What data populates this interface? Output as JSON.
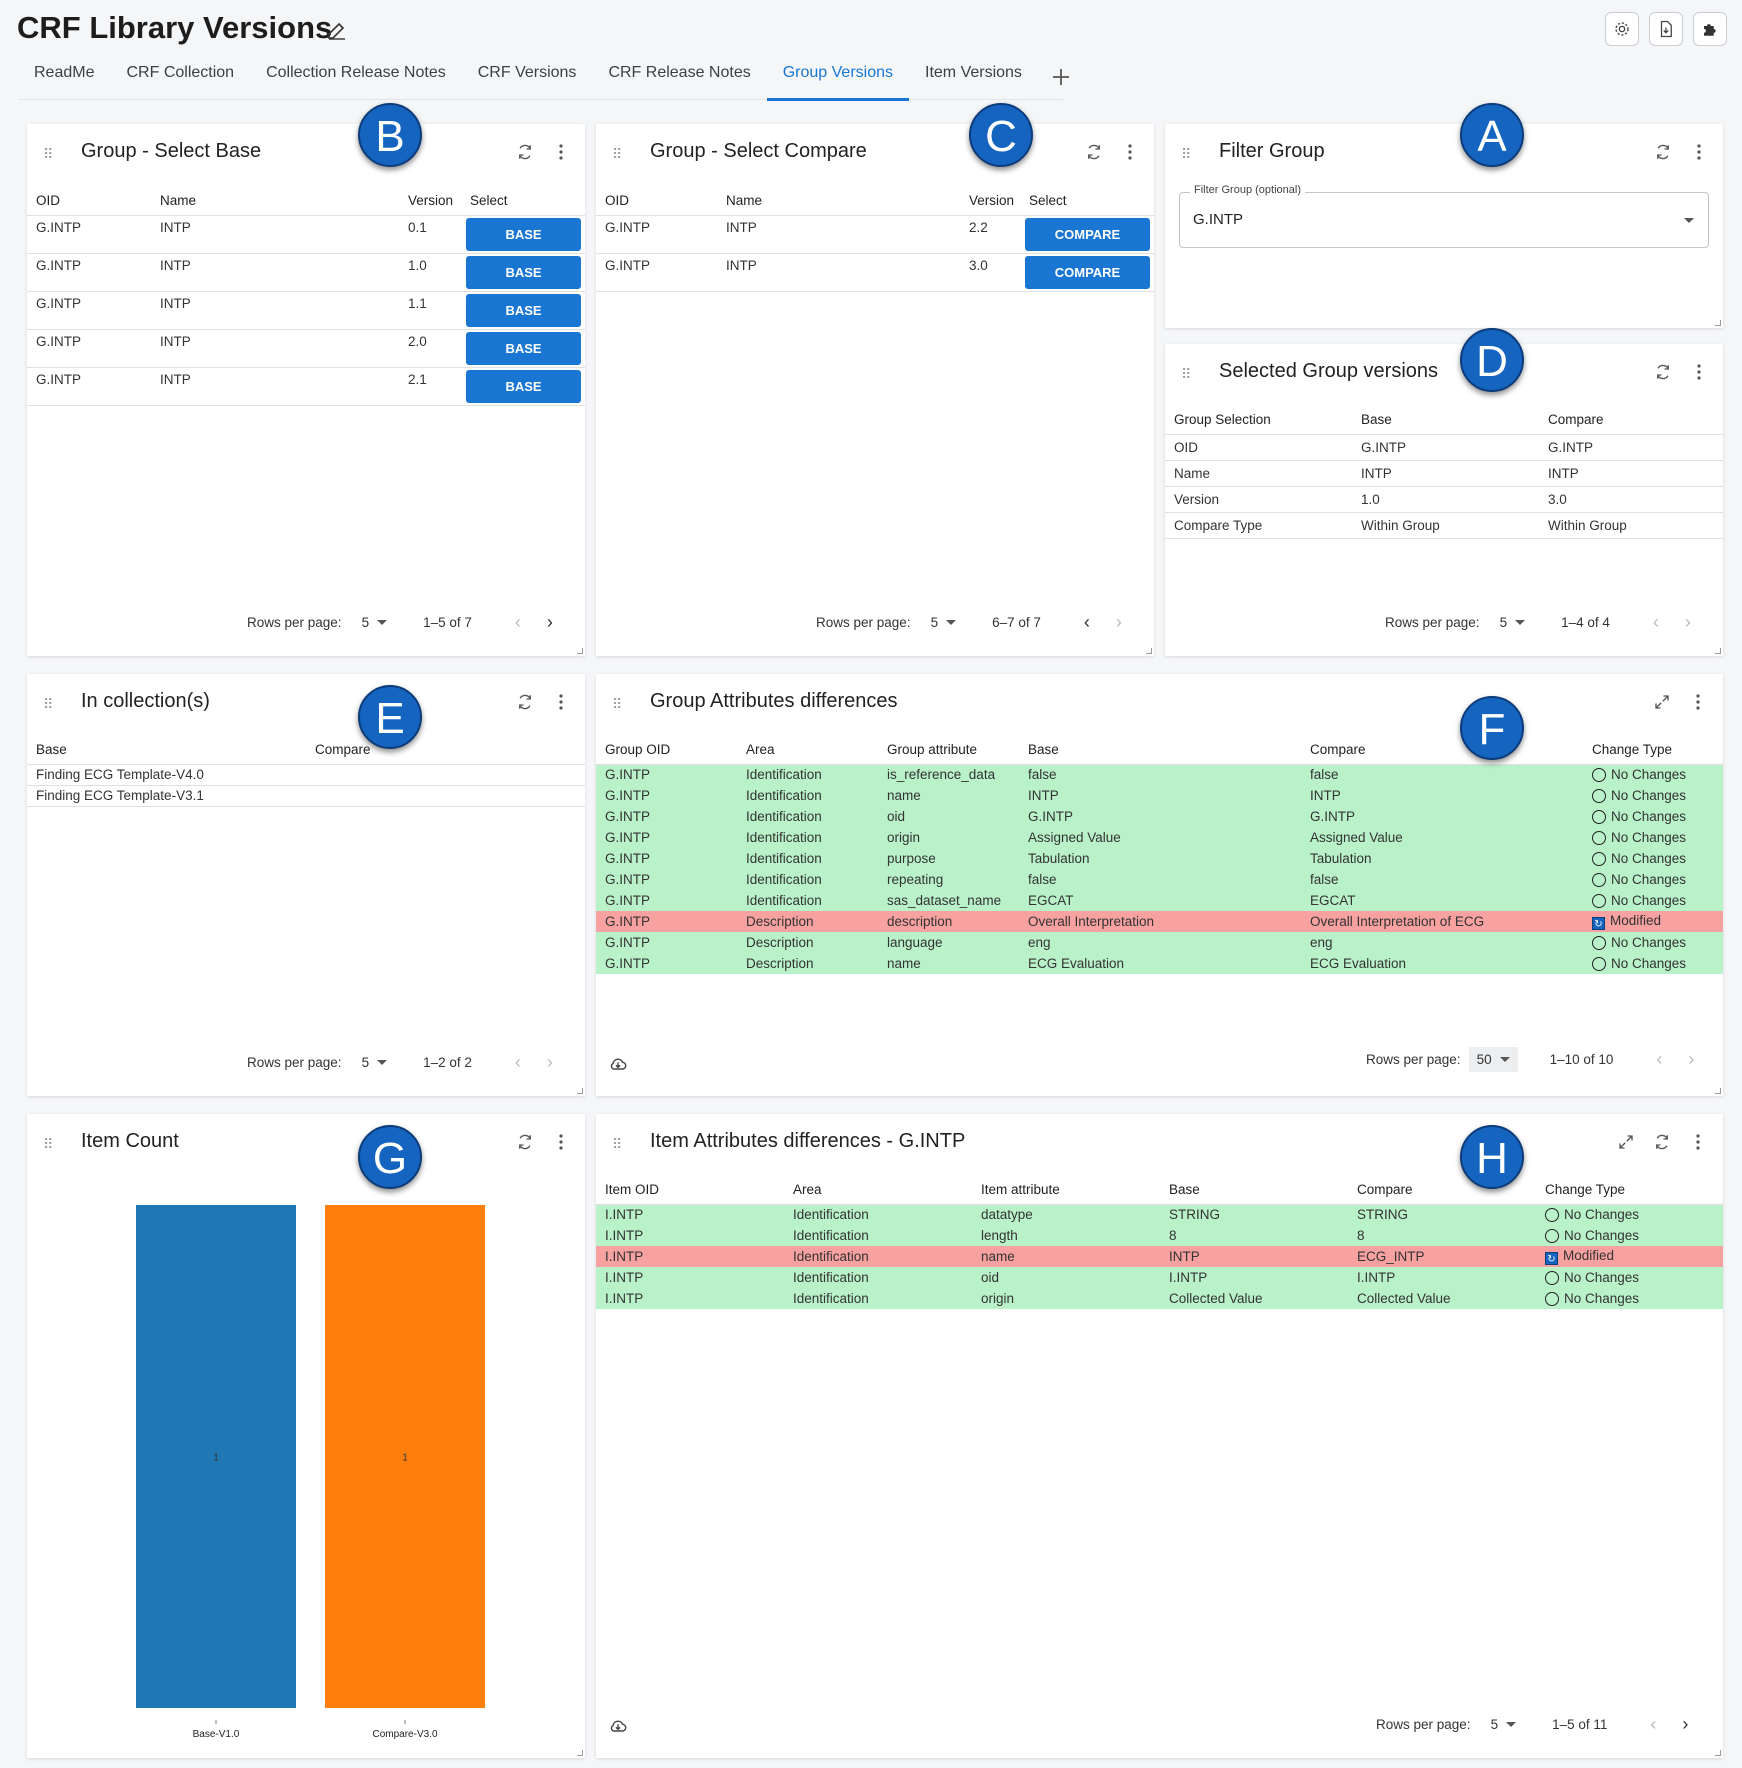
{
  "app": {
    "title": "CRF Library Versions"
  },
  "tabs": [
    {
      "label": "ReadMe"
    },
    {
      "label": "CRF Collection"
    },
    {
      "label": "Collection Release Notes"
    },
    {
      "label": "CRF Versions"
    },
    {
      "label": "CRF Release Notes"
    },
    {
      "label": "Group Versions",
      "active": true
    },
    {
      "label": "Item Versions"
    }
  ],
  "badges": {
    "a": "A",
    "b": "B",
    "c": "C",
    "d": "D",
    "e": "E",
    "f": "F",
    "g": "G",
    "h": "H"
  },
  "base_panel": {
    "title": "Group - Select Base",
    "columns": [
      "OID",
      "Name",
      "Version",
      "Select"
    ],
    "rows": [
      {
        "oid": "G.INTP",
        "name": "INTP",
        "version": "0.1",
        "action": "BASE"
      },
      {
        "oid": "G.INTP",
        "name": "INTP",
        "version": "1.0",
        "action": "BASE"
      },
      {
        "oid": "G.INTP",
        "name": "INTP",
        "version": "1.1",
        "action": "BASE"
      },
      {
        "oid": "G.INTP",
        "name": "INTP",
        "version": "2.0",
        "action": "BASE"
      },
      {
        "oid": "G.INTP",
        "name": "INTP",
        "version": "2.1",
        "action": "BASE"
      }
    ],
    "pager": {
      "label": "Rows per page:",
      "rows": "5",
      "range": "1–5 of 7"
    }
  },
  "compare_panel": {
    "title": "Group - Select Compare",
    "columns": [
      "OID",
      "Name",
      "Version",
      "Select"
    ],
    "rows": [
      {
        "oid": "G.INTP",
        "name": "INTP",
        "version": "2.2",
        "action": "COMPARE"
      },
      {
        "oid": "G.INTP",
        "name": "INTP",
        "version": "3.0",
        "action": "COMPARE"
      }
    ],
    "pager": {
      "label": "Rows per page:",
      "rows": "5",
      "range": "6–7 of 7"
    }
  },
  "filter_panel": {
    "title": "Filter Group",
    "field_label": "Filter Group (optional)",
    "value": "G.INTP"
  },
  "selected_panel": {
    "title": "Selected Group versions",
    "columns": [
      "Group Selection",
      "Base",
      "Compare"
    ],
    "rows": [
      {
        "sel": "OID",
        "base": "G.INTP",
        "compare": "G.INTP"
      },
      {
        "sel": "Name",
        "base": "INTP",
        "compare": "INTP"
      },
      {
        "sel": "Version",
        "base": "1.0",
        "compare": "3.0"
      },
      {
        "sel": "Compare Type",
        "base": "Within Group",
        "compare": "Within Group"
      }
    ],
    "pager": {
      "label": "Rows per page:",
      "rows": "5",
      "range": "1–4 of 4"
    }
  },
  "collections_panel": {
    "title": "In collection(s)",
    "columns": [
      "Base",
      "Compare"
    ],
    "rows": [
      {
        "base": "Finding ECG Template-V4.0",
        "compare": ""
      },
      {
        "base": "Finding ECG Template-V3.1",
        "compare": ""
      }
    ],
    "pager": {
      "label": "Rows per page:",
      "rows": "5",
      "range": "1–2 of 2"
    }
  },
  "group_diff_panel": {
    "title": "Group Attributes differences",
    "columns": [
      "Group OID",
      "Area",
      "Group attribute",
      "Base",
      "Compare",
      "Change Type"
    ],
    "rows": [
      {
        "oid": "G.INTP",
        "area": "Identification",
        "attr": "is_reference_data",
        "base": "false",
        "compare": "false",
        "change": "No Changes",
        "status": "same"
      },
      {
        "oid": "G.INTP",
        "area": "Identification",
        "attr": "name",
        "base": "INTP",
        "compare": "INTP",
        "change": "No Changes",
        "status": "same"
      },
      {
        "oid": "G.INTP",
        "area": "Identification",
        "attr": "oid",
        "base": "G.INTP",
        "compare": "G.INTP",
        "change": "No Changes",
        "status": "same"
      },
      {
        "oid": "G.INTP",
        "area": "Identification",
        "attr": "origin",
        "base": "Assigned Value",
        "compare": "Assigned Value",
        "change": "No Changes",
        "status": "same"
      },
      {
        "oid": "G.INTP",
        "area": "Identification",
        "attr": "purpose",
        "base": "Tabulation",
        "compare": "Tabulation",
        "change": "No Changes",
        "status": "same"
      },
      {
        "oid": "G.INTP",
        "area": "Identification",
        "attr": "repeating",
        "base": "false",
        "compare": "false",
        "change": "No Changes",
        "status": "same"
      },
      {
        "oid": "G.INTP",
        "area": "Identification",
        "attr": "sas_dataset_name",
        "base": "EGCAT",
        "compare": "EGCAT",
        "change": "No Changes",
        "status": "same"
      },
      {
        "oid": "G.INTP",
        "area": "Description",
        "attr": "description",
        "base": "Overall Interpretation",
        "compare": "Overall Interpretation of ECG",
        "change": "Modified",
        "status": "modified"
      },
      {
        "oid": "G.INTP",
        "area": "Description",
        "attr": "language",
        "base": "eng",
        "compare": "eng",
        "change": "No Changes",
        "status": "same"
      },
      {
        "oid": "G.INTP",
        "area": "Description",
        "attr": "name",
        "base": "ECG Evaluation",
        "compare": "ECG Evaluation",
        "change": "No Changes",
        "status": "same"
      }
    ],
    "pager": {
      "label": "Rows per page:",
      "rows": "50",
      "range": "1–10 of 10"
    }
  },
  "item_count_panel": {
    "title": "Item Count"
  },
  "chart_data": {
    "type": "bar",
    "categories": [
      "Base-V1.0",
      "Compare-V3.0"
    ],
    "values": [
      1,
      1
    ],
    "colors": [
      "#1f77b4",
      "#ff7f0e"
    ],
    "ylim": [
      0,
      1
    ]
  },
  "item_diff_panel": {
    "title": "Item Attributes differences - G.INTP",
    "columns": [
      "Item OID",
      "Area",
      "Item attribute",
      "Base",
      "Compare",
      "Change Type"
    ],
    "rows": [
      {
        "oid": "I.INTP",
        "area": "Identification",
        "attr": "datatype",
        "base": "STRING",
        "compare": "STRING",
        "change": "No Changes",
        "status": "same"
      },
      {
        "oid": "I.INTP",
        "area": "Identification",
        "attr": "length",
        "base": "8",
        "compare": "8",
        "change": "No Changes",
        "status": "same"
      },
      {
        "oid": "I.INTP",
        "area": "Identification",
        "attr": "name",
        "base": "INTP",
        "compare": "ECG_INTP",
        "change": "Modified",
        "status": "modified"
      },
      {
        "oid": "I.INTP",
        "area": "Identification",
        "attr": "oid",
        "base": "I.INTP",
        "compare": "I.INTP",
        "change": "No Changes",
        "status": "same"
      },
      {
        "oid": "I.INTP",
        "area": "Identification",
        "attr": "origin",
        "base": "Collected Value",
        "compare": "Collected Value",
        "change": "No Changes",
        "status": "same"
      }
    ],
    "pager": {
      "label": "Rows per page:",
      "rows": "5",
      "range": "1–5 of 11"
    }
  }
}
